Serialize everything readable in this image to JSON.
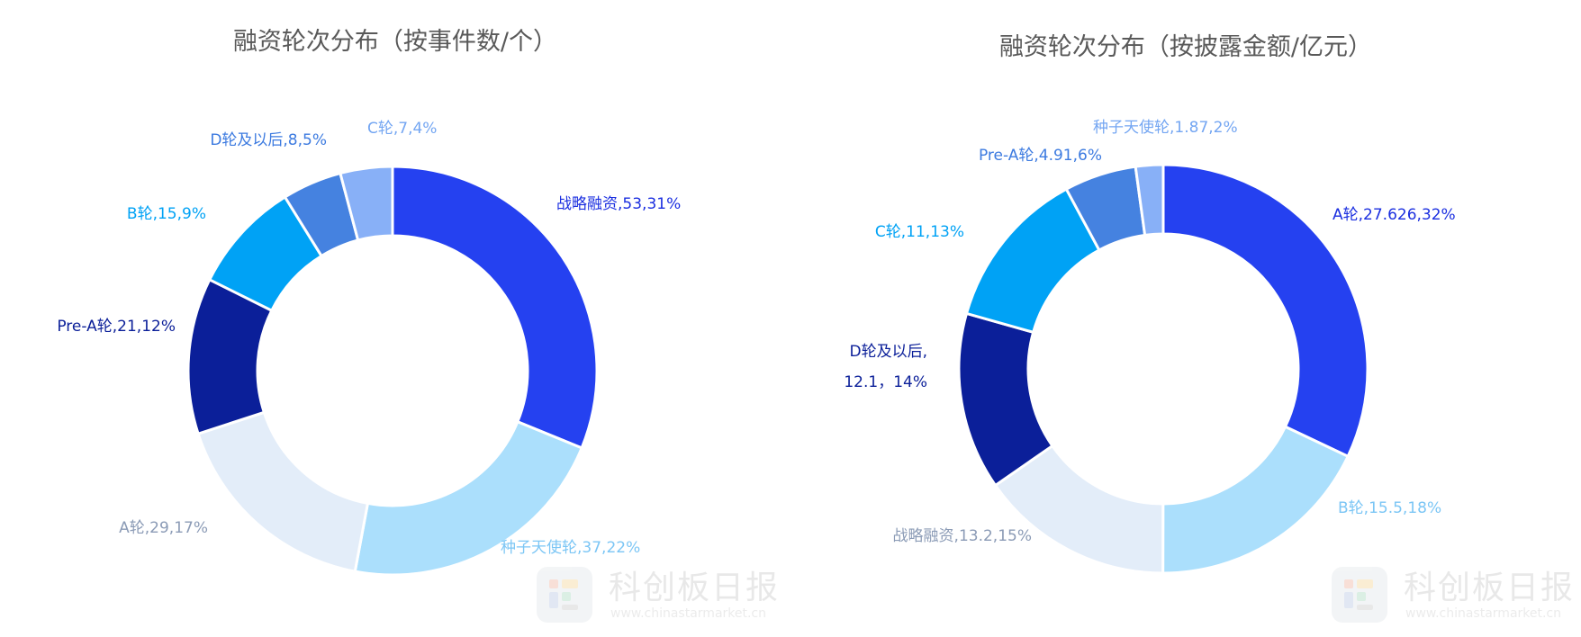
{
  "chart_data": [
    {
      "type": "pie",
      "donut": true,
      "title": "融资轮次分布（按事件数/个）",
      "slices": [
        {
          "name": "战略融资",
          "value": 53,
          "percent": "31%",
          "color": "#2541f0",
          "label": "战略融资,53,31%"
        },
        {
          "name": "种子天使轮",
          "value": 37,
          "percent": "22%",
          "color": "#abdffc",
          "label": "种子天使轮,37,22%"
        },
        {
          "name": "A轮",
          "value": 29,
          "percent": "17%",
          "color": "#e3edf9",
          "label": "A轮,29,17%"
        },
        {
          "name": "Pre-A轮",
          "value": 21,
          "percent": "12%",
          "color": "#0b1f99",
          "label": "Pre-A轮,21,12%"
        },
        {
          "name": "B轮",
          "value": 15,
          "percent": "9%",
          "color": "#00a2f5",
          "label": "B轮,15,9%"
        },
        {
          "name": "D轮及以后",
          "value": 8,
          "percent": "5%",
          "color": "#4582e0",
          "label": "D轮及以后,8,5%"
        },
        {
          "name": "C轮",
          "value": 7,
          "percent": "4%",
          "color": "#88b0f7",
          "label": "C轮,7,4%"
        }
      ]
    },
    {
      "type": "pie",
      "donut": true,
      "title": "融资轮次分布（按披露金额/亿元）",
      "slices": [
        {
          "name": "A轮",
          "value": 27.626,
          "percent": "32%",
          "color": "#2541f0",
          "label": "A轮,27.626,32%"
        },
        {
          "name": "B轮",
          "value": 15.5,
          "percent": "18%",
          "color": "#abdffc",
          "label": "B轮,15.5,18%"
        },
        {
          "name": "战略融资",
          "value": 13.2,
          "percent": "15%",
          "color": "#e3edf9",
          "label": "战略融资,13.2,15%"
        },
        {
          "name": "D轮及以后",
          "value": 12.1,
          "percent": "14%",
          "color": "#0b1f99",
          "label": "D轮及以后,",
          "label2": "12.1，14%"
        },
        {
          "name": "C轮",
          "value": 11,
          "percent": "13%",
          "color": "#00a2f5",
          "label": "C轮,11,13%"
        },
        {
          "name": "Pre-A轮",
          "value": 4.91,
          "percent": "6%",
          "color": "#4582e0",
          "label": "Pre-A轮,4.91,6%"
        },
        {
          "name": "种子天使轮",
          "value": 1.87,
          "percent": "2%",
          "color": "#88b0f7",
          "label": "种子天使轮,1.87,2%"
        }
      ]
    }
  ],
  "watermark": {
    "title": "科创板日报",
    "url": "www.chinastarmarket.cn"
  }
}
